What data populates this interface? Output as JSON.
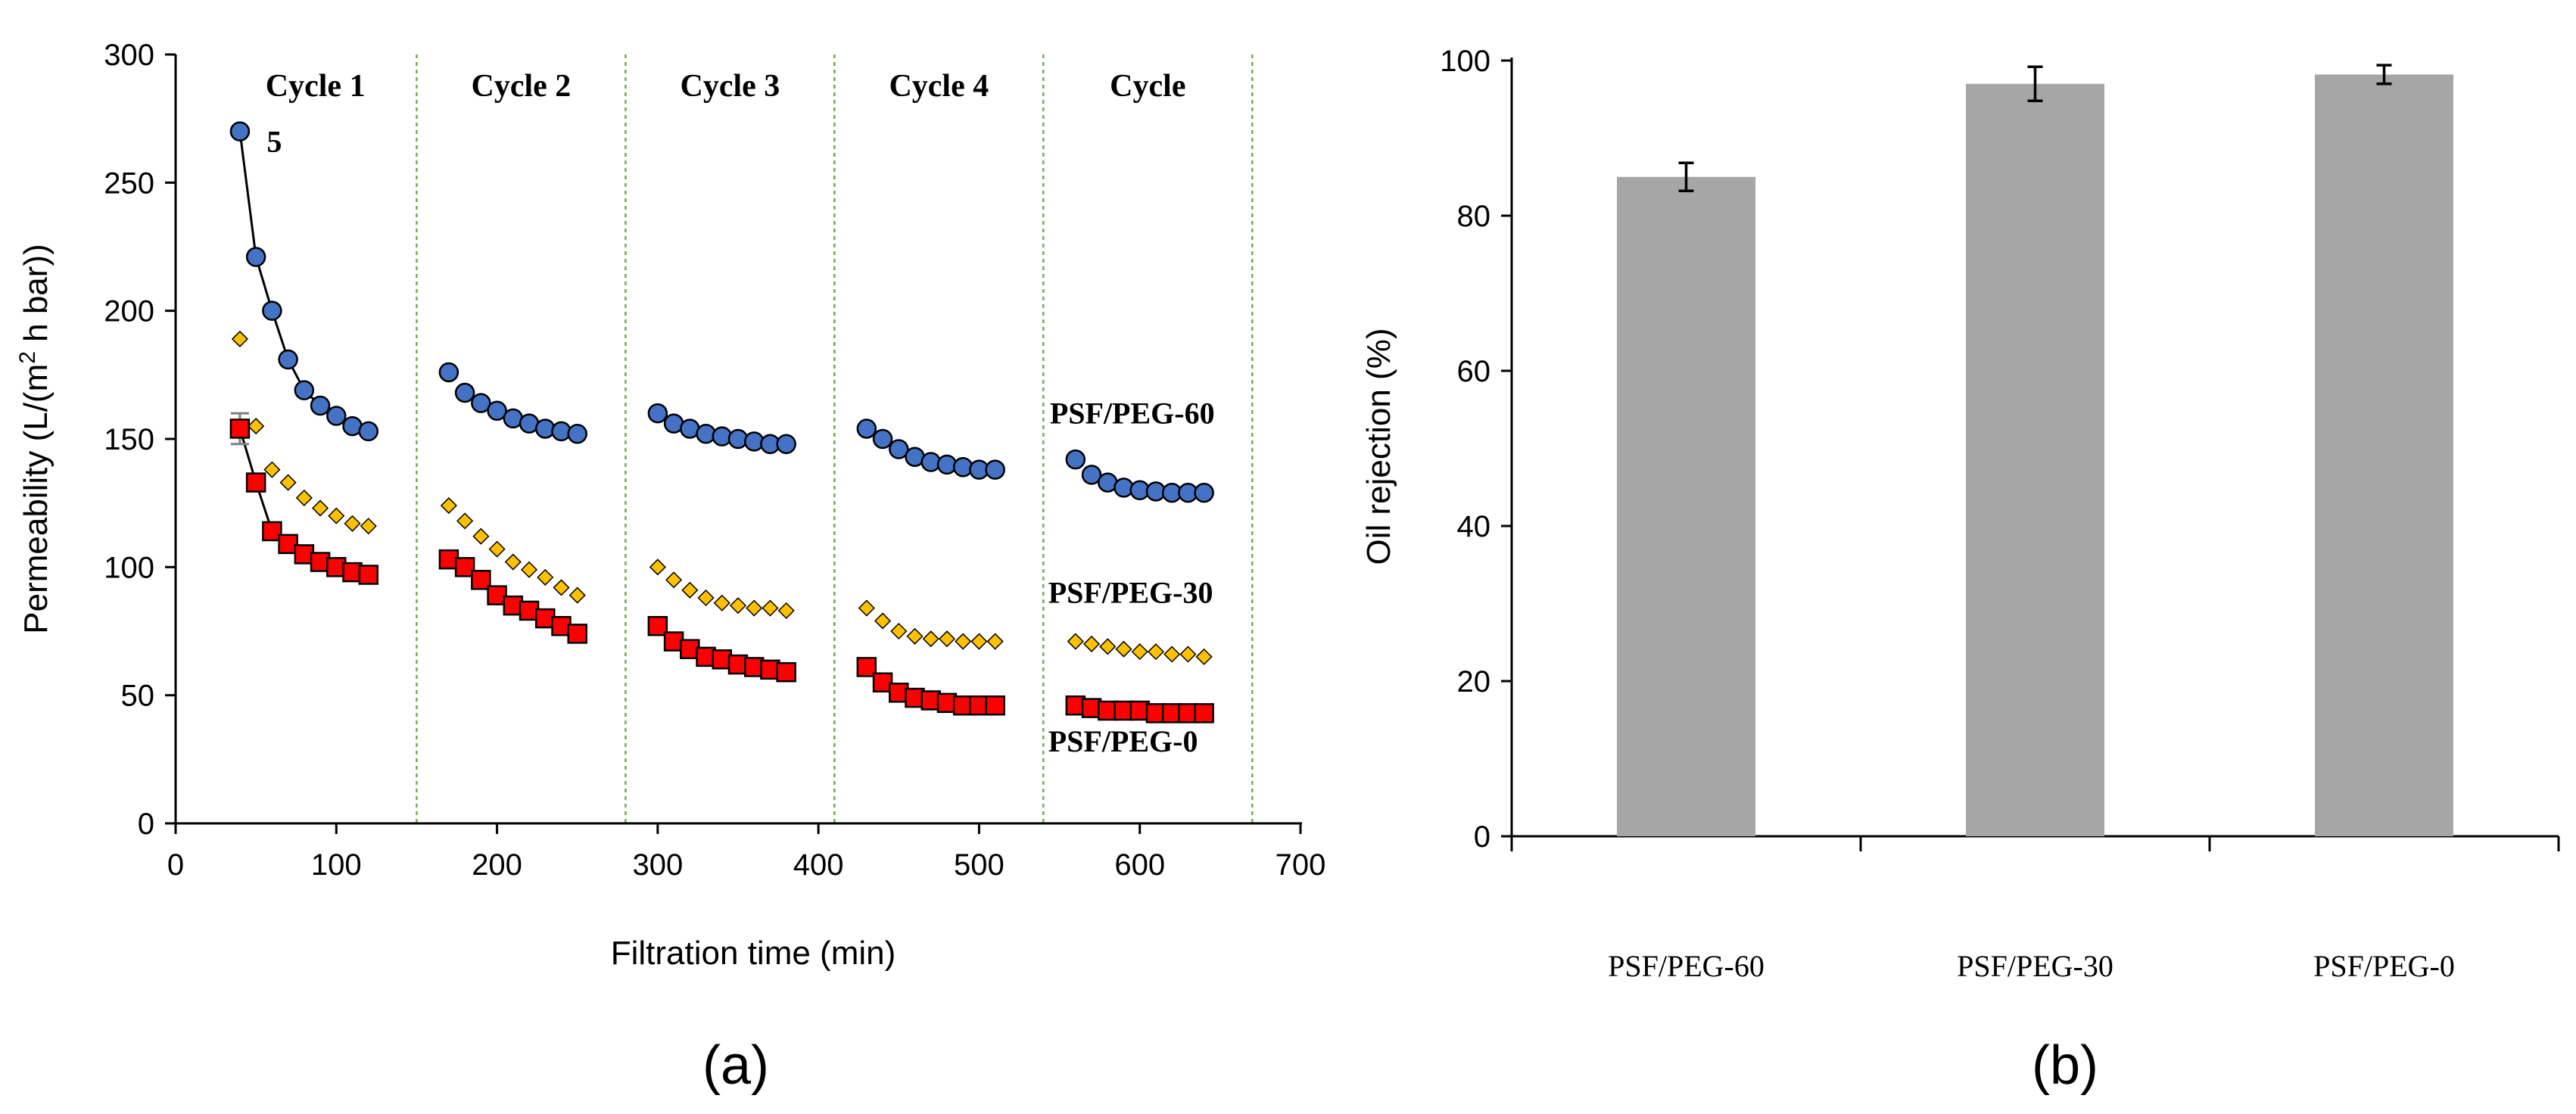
{
  "figure": {
    "panel_a_label": "(a)",
    "panel_b_label": "(b)",
    "colors": {
      "peg60": "#4472c4",
      "peg30": "#ffc000",
      "peg0": "#ff0000",
      "bar": "#a6a6a6",
      "divider": "#70ad47",
      "axis": "#000000"
    }
  },
  "chart_data": [
    {
      "type": "scatter",
      "xlabel": "Filtration time (min)",
      "ylabel_prefix": "Permeability (L/(m",
      "ylabel_sup": "2",
      "ylabel_suffix": " h bar))",
      "xlim": [
        0,
        700
      ],
      "ylim": [
        0,
        300
      ],
      "xticks": [
        0,
        100,
        200,
        300,
        400,
        500,
        600,
        700
      ],
      "yticks": [
        0,
        50,
        100,
        150,
        200,
        250,
        300
      ],
      "cycle_boundaries": [
        150,
        280,
        410,
        540,
        670
      ],
      "cycles": [
        {
          "label": "Cycle 1",
          "x": 87
        },
        {
          "label": "Cycle 2",
          "x": 215
        },
        {
          "label": "Cycle 3",
          "x": 345
        },
        {
          "label": "Cycle 4",
          "x": 475
        },
        {
          "label": "Cycle",
          "x": 605
        }
      ],
      "stray_label": {
        "text": "5",
        "x": 52,
        "y": 268
      },
      "series": [
        {
          "name": "PSF/PEG-60",
          "marker": "circle",
          "label_pos": {
            "x": 544,
            "y": 156
          },
          "connect_first_cycle": true,
          "points": [
            [
              40,
              270
            ],
            [
              50,
              221
            ],
            [
              60,
              200
            ],
            [
              70,
              181
            ],
            [
              80,
              169
            ],
            [
              90,
              163
            ],
            [
              100,
              159
            ],
            [
              110,
              155
            ],
            [
              120,
              153
            ],
            [
              170,
              176
            ],
            [
              180,
              168
            ],
            [
              190,
              164
            ],
            [
              200,
              161
            ],
            [
              210,
              158
            ],
            [
              220,
              156
            ],
            [
              230,
              154
            ],
            [
              240,
              153
            ],
            [
              250,
              152
            ],
            [
              300,
              160
            ],
            [
              310,
              156
            ],
            [
              320,
              154
            ],
            [
              330,
              152
            ],
            [
              340,
              151
            ],
            [
              350,
              150
            ],
            [
              360,
              149
            ],
            [
              370,
              148
            ],
            [
              380,
              148
            ],
            [
              430,
              154
            ],
            [
              440,
              150
            ],
            [
              450,
              146
            ],
            [
              460,
              143
            ],
            [
              470,
              141
            ],
            [
              480,
              140
            ],
            [
              490,
              139
            ],
            [
              500,
              138
            ],
            [
              510,
              138
            ],
            [
              560,
              142
            ],
            [
              570,
              136
            ],
            [
              580,
              133
            ],
            [
              590,
              131
            ],
            [
              600,
              130
            ],
            [
              610,
              129.5
            ],
            [
              620,
              129
            ],
            [
              630,
              129
            ],
            [
              640,
              129
            ]
          ]
        },
        {
          "name": "PSF/PEG-30",
          "marker": "diamond",
          "label_pos": {
            "x": 543,
            "y": 86
          },
          "connect_first_cycle": false,
          "points": [
            [
              40,
              189
            ],
            [
              50,
              155
            ],
            [
              60,
              138
            ],
            [
              70,
              133
            ],
            [
              80,
              127
            ],
            [
              90,
              123
            ],
            [
              100,
              120
            ],
            [
              110,
              117
            ],
            [
              120,
              116
            ],
            [
              170,
              124
            ],
            [
              180,
              118
            ],
            [
              190,
              112
            ],
            [
              200,
              107
            ],
            [
              210,
              102
            ],
            [
              220,
              99
            ],
            [
              230,
              96
            ],
            [
              240,
              92
            ],
            [
              250,
              89
            ],
            [
              300,
              100
            ],
            [
              310,
              95
            ],
            [
              320,
              91
            ],
            [
              330,
              88
            ],
            [
              340,
              86
            ],
            [
              350,
              85
            ],
            [
              360,
              84
            ],
            [
              370,
              84
            ],
            [
              380,
              83
            ],
            [
              430,
              84
            ],
            [
              440,
              79
            ],
            [
              450,
              75
            ],
            [
              460,
              73
            ],
            [
              470,
              72
            ],
            [
              480,
              72
            ],
            [
              490,
              71
            ],
            [
              500,
              71
            ],
            [
              510,
              71
            ],
            [
              560,
              71
            ],
            [
              570,
              70
            ],
            [
              580,
              69
            ],
            [
              590,
              68
            ],
            [
              600,
              67
            ],
            [
              610,
              67
            ],
            [
              620,
              66
            ],
            [
              630,
              66
            ],
            [
              640,
              65
            ]
          ]
        },
        {
          "name": "PSF/PEG-0",
          "marker": "square",
          "label_pos": {
            "x": 543,
            "y": 28
          },
          "connect_first_cycle": true,
          "error_bar": {
            "x": 40,
            "low": 148,
            "high": 160
          },
          "points": [
            [
              40,
              154
            ],
            [
              50,
              133
            ],
            [
              60,
              114
            ],
            [
              70,
              109
            ],
            [
              80,
              105
            ],
            [
              90,
              102
            ],
            [
              100,
              100
            ],
            [
              110,
              98
            ],
            [
              120,
              97
            ],
            [
              170,
              103
            ],
            [
              180,
              100
            ],
            [
              190,
              95
            ],
            [
              200,
              89
            ],
            [
              210,
              85
            ],
            [
              220,
              83
            ],
            [
              230,
              80
            ],
            [
              240,
              77
            ],
            [
              250,
              74
            ],
            [
              300,
              77
            ],
            [
              310,
              71
            ],
            [
              320,
              68
            ],
            [
              330,
              65
            ],
            [
              340,
              64
            ],
            [
              350,
              62
            ],
            [
              360,
              61
            ],
            [
              370,
              60
            ],
            [
              380,
              59
            ],
            [
              430,
              61
            ],
            [
              440,
              55
            ],
            [
              450,
              51
            ],
            [
              460,
              49
            ],
            [
              470,
              48
            ],
            [
              480,
              47
            ],
            [
              490,
              46
            ],
            [
              500,
              46
            ],
            [
              510,
              46
            ],
            [
              560,
              46
            ],
            [
              570,
              45
            ],
            [
              580,
              44
            ],
            [
              590,
              44
            ],
            [
              600,
              44
            ],
            [
              610,
              43
            ],
            [
              620,
              43
            ],
            [
              630,
              43
            ],
            [
              640,
              43
            ]
          ]
        }
      ]
    },
    {
      "type": "bar",
      "ylabel": "Oil rejection (%)",
      "ylim": [
        0,
        100
      ],
      "yticks": [
        0,
        20,
        40,
        60,
        80,
        100
      ],
      "categories": [
        "PSF/PEG-60",
        "PSF/PEG-30",
        "PSF/PEG-0"
      ],
      "values": [
        85,
        97,
        98.2
      ],
      "errors": [
        1.8,
        2.2,
        1.2
      ]
    }
  ]
}
